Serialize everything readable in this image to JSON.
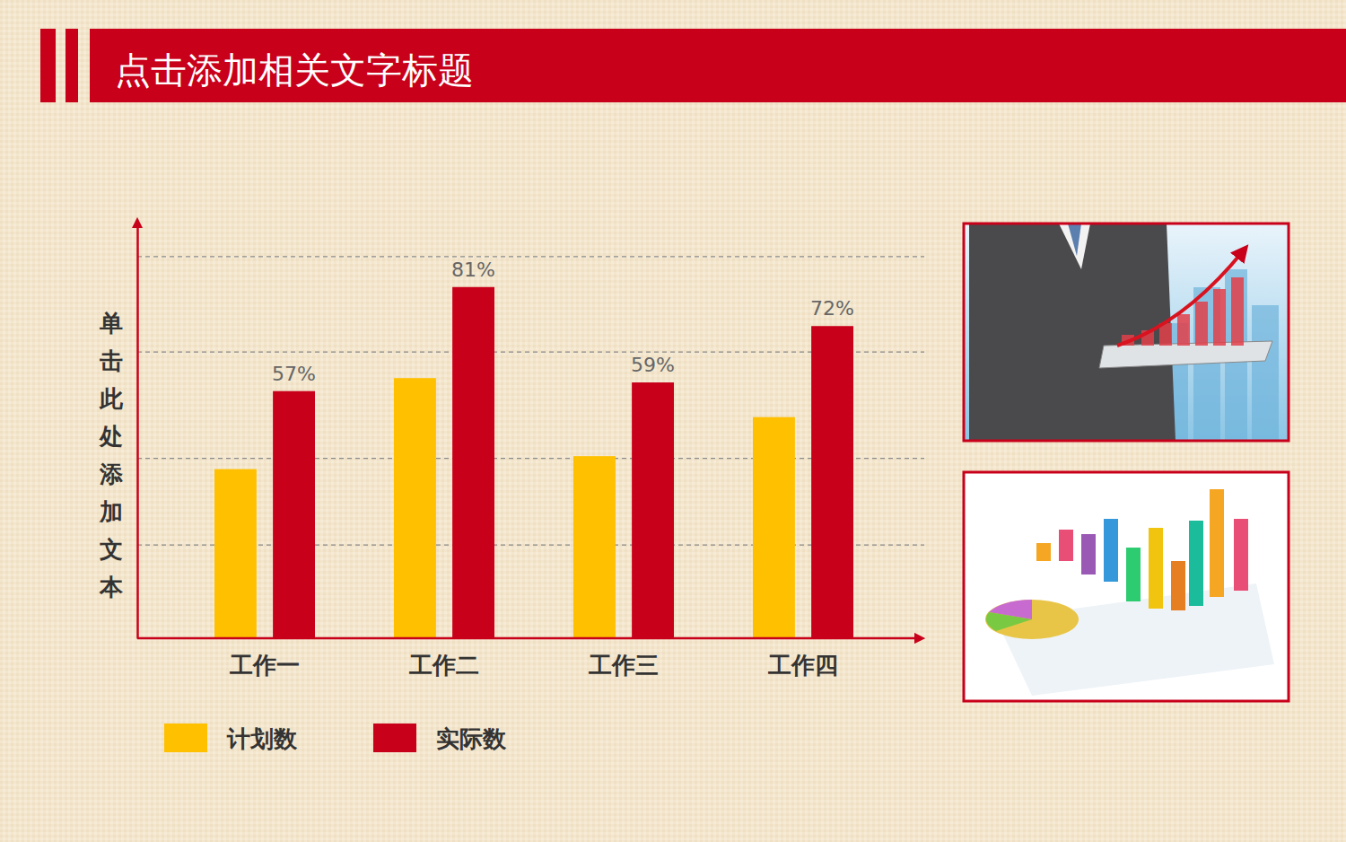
{
  "chart_data": {
    "type": "bar",
    "title": "点击添加相关文字标题",
    "y_label": "单击此处添加文本",
    "categories": [
      "工作一",
      "工作二",
      "工作三",
      "工作四"
    ],
    "series": [
      {
        "name": "计划数",
        "color": "#ffc000",
        "values": [
          39,
          60,
          42,
          51
        ]
      },
      {
        "name": "实际数",
        "color": "#c8001a",
        "values": [
          57,
          81,
          59,
          72
        ],
        "value_labels": [
          "57%",
          "81%",
          "59%",
          "72%"
        ]
      }
    ],
    "ylim": [
      0,
      95
    ],
    "yticks": [
      21.5,
      41.5,
      66,
      88
    ],
    "grid": true,
    "tick_labels": "x",
    "data_labels": true,
    "legend": "bottom"
  }
}
